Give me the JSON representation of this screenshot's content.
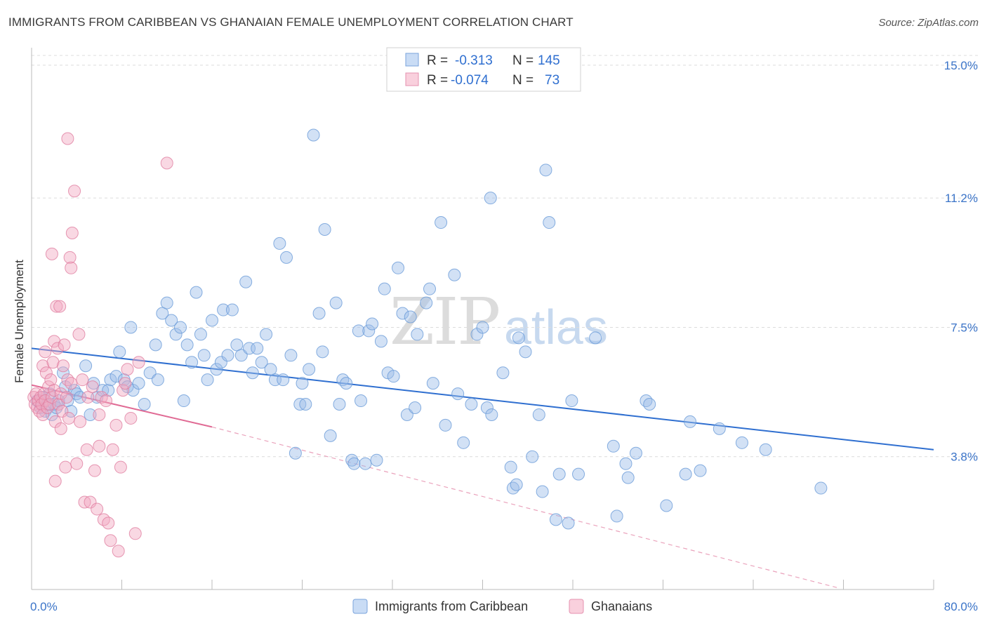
{
  "title": "IMMIGRANTS FROM CARIBBEAN VS GHANAIAN FEMALE UNEMPLOYMENT CORRELATION CHART",
  "source": "Source: ZipAtlas.com",
  "watermark": {
    "zip": "ZIP",
    "atlas": "atlas"
  },
  "legend_box": {
    "rows": [
      {
        "r_label": "R =",
        "r_value": "-0.313",
        "n_label": "N =",
        "n_value": "145",
        "color": "#9bbde8"
      },
      {
        "r_label": "R =",
        "r_value": "-0.074",
        "n_label": "N =",
        "n_value": "73",
        "color": "#f2a9c0"
      }
    ]
  },
  "chart_data": {
    "type": "scatter",
    "ylabel": "Female Unemployment",
    "xlabel": "",
    "xlim": [
      0,
      80
    ],
    "ylim": [
      0,
      15.5
    ],
    "x_tick_labels": [
      {
        "value": 0,
        "label": "0.0%"
      },
      {
        "value": 80,
        "label": "80.0%"
      }
    ],
    "y_tick_labels": [
      {
        "value": 3.8,
        "label": "3.8%"
      },
      {
        "value": 7.5,
        "label": "7.5%"
      },
      {
        "value": 11.2,
        "label": "11.2%"
      },
      {
        "value": 15.0,
        "label": "15.0%"
      }
    ],
    "grid": "horizontal dashed",
    "legend_position": "bottom",
    "series": [
      {
        "name": "Immigrants from Caribbean",
        "color": "#9bbde8",
        "stroke": "#6a9bd8",
        "trend": {
          "x0": 0,
          "y0": 6.9,
          "x1": 80,
          "y1": 4.0,
          "color": "#2f6fd0"
        },
        "points": [
          [
            0.5,
            5.4
          ],
          [
            0.8,
            5.2
          ],
          [
            1.0,
            5.5
          ],
          [
            1.2,
            5.1
          ],
          [
            1.4,
            5.3
          ],
          [
            1.6,
            5.6
          ],
          [
            1.8,
            5.0
          ],
          [
            2.0,
            5.3
          ],
          [
            2.2,
            5.2
          ],
          [
            2.4,
            5.4
          ],
          [
            2.8,
            6.2
          ],
          [
            3.0,
            5.8
          ],
          [
            3.2,
            5.4
          ],
          [
            3.5,
            5.1
          ],
          [
            3.8,
            5.7
          ],
          [
            4.0,
            5.6
          ],
          [
            4.3,
            5.5
          ],
          [
            4.8,
            6.4
          ],
          [
            5.2,
            5.0
          ],
          [
            5.5,
            5.9
          ],
          [
            5.8,
            5.5
          ],
          [
            6.3,
            5.7
          ],
          [
            6.8,
            5.7
          ],
          [
            7.0,
            6.0
          ],
          [
            7.5,
            6.1
          ],
          [
            7.8,
            6.8
          ],
          [
            8.2,
            6.0
          ],
          [
            8.5,
            5.8
          ],
          [
            8.8,
            7.5
          ],
          [
            9.0,
            5.7
          ],
          [
            9.5,
            5.9
          ],
          [
            10.0,
            5.3
          ],
          [
            10.5,
            6.2
          ],
          [
            11.0,
            7.0
          ],
          [
            11.2,
            6.0
          ],
          [
            11.6,
            7.9
          ],
          [
            12.0,
            8.2
          ],
          [
            12.4,
            7.7
          ],
          [
            12.8,
            7.3
          ],
          [
            13.2,
            7.5
          ],
          [
            13.5,
            5.4
          ],
          [
            13.8,
            7.0
          ],
          [
            14.2,
            6.5
          ],
          [
            14.6,
            8.5
          ],
          [
            15.0,
            7.3
          ],
          [
            15.3,
            6.7
          ],
          [
            15.6,
            6.0
          ],
          [
            16.0,
            7.7
          ],
          [
            16.4,
            6.3
          ],
          [
            16.8,
            6.5
          ],
          [
            17.0,
            8.0
          ],
          [
            17.4,
            6.7
          ],
          [
            17.8,
            8.0
          ],
          [
            18.2,
            7.0
          ],
          [
            18.6,
            6.7
          ],
          [
            19.0,
            8.8
          ],
          [
            19.3,
            6.9
          ],
          [
            19.6,
            6.2
          ],
          [
            20.0,
            6.9
          ],
          [
            20.4,
            6.5
          ],
          [
            20.8,
            7.3
          ],
          [
            21.2,
            6.3
          ],
          [
            21.6,
            6.0
          ],
          [
            22.0,
            9.9
          ],
          [
            22.3,
            6.0
          ],
          [
            22.6,
            9.5
          ],
          [
            23.0,
            6.7
          ],
          [
            23.4,
            3.9
          ],
          [
            23.8,
            5.3
          ],
          [
            24.0,
            5.9
          ],
          [
            24.3,
            5.3
          ],
          [
            24.6,
            6.3
          ],
          [
            25.0,
            13.0
          ],
          [
            25.5,
            7.9
          ],
          [
            25.8,
            6.8
          ],
          [
            26.0,
            10.3
          ],
          [
            26.5,
            4.4
          ],
          [
            27.0,
            8.2
          ],
          [
            27.3,
            5.3
          ],
          [
            27.6,
            6.0
          ],
          [
            27.9,
            5.9
          ],
          [
            28.4,
            3.7
          ],
          [
            28.6,
            3.6
          ],
          [
            29.0,
            7.4
          ],
          [
            29.2,
            5.4
          ],
          [
            29.6,
            3.6
          ],
          [
            29.9,
            7.4
          ],
          [
            30.2,
            7.6
          ],
          [
            30.6,
            3.7
          ],
          [
            31.0,
            7.1
          ],
          [
            31.3,
            8.6
          ],
          [
            31.6,
            6.2
          ],
          [
            32.1,
            6.1
          ],
          [
            32.5,
            9.2
          ],
          [
            32.9,
            7.9
          ],
          [
            33.3,
            5.0
          ],
          [
            33.6,
            7.8
          ],
          [
            34.0,
            5.2
          ],
          [
            34.2,
            7.3
          ],
          [
            35.0,
            8.2
          ],
          [
            35.3,
            8.6
          ],
          [
            35.6,
            5.9
          ],
          [
            36.3,
            10.5
          ],
          [
            36.7,
            4.7
          ],
          [
            37.5,
            9.0
          ],
          [
            37.8,
            5.6
          ],
          [
            38.3,
            4.2
          ],
          [
            39.0,
            5.3
          ],
          [
            39.5,
            7.3
          ],
          [
            40.0,
            7.5
          ],
          [
            40.4,
            5.2
          ],
          [
            40.7,
            11.2
          ],
          [
            40.8,
            5.0
          ],
          [
            41.8,
            6.2
          ],
          [
            42.5,
            3.5
          ],
          [
            42.7,
            2.9
          ],
          [
            43.0,
            3.0
          ],
          [
            43.2,
            7.2
          ],
          [
            43.8,
            6.8
          ],
          [
            44.4,
            3.8
          ],
          [
            45.0,
            5.0
          ],
          [
            45.3,
            2.8
          ],
          [
            45.6,
            12.0
          ],
          [
            45.9,
            10.5
          ],
          [
            46.5,
            2.0
          ],
          [
            46.8,
            3.3
          ],
          [
            47.6,
            1.9
          ],
          [
            47.9,
            5.4
          ],
          [
            48.5,
            3.3
          ],
          [
            50.0,
            7.2
          ],
          [
            51.6,
            4.1
          ],
          [
            51.9,
            2.1
          ],
          [
            52.7,
            3.6
          ],
          [
            52.9,
            3.2
          ],
          [
            53.6,
            3.9
          ],
          [
            54.5,
            5.4
          ],
          [
            54.8,
            5.3
          ],
          [
            56.3,
            2.4
          ],
          [
            58.0,
            3.3
          ],
          [
            58.4,
            4.8
          ],
          [
            59.3,
            3.4
          ],
          [
            61.0,
            4.6
          ],
          [
            63.0,
            4.2
          ],
          [
            65.1,
            4.0
          ],
          [
            70.0,
            2.9
          ]
        ]
      },
      {
        "name": "Ghanaians",
        "color": "#f2a9c0",
        "stroke": "#e07ea0",
        "trend": {
          "x0": 0,
          "y0": 5.85,
          "x1": 16,
          "y1": 4.65,
          "color": "#e06a94"
        },
        "trend_ext": {
          "x0": 16,
          "y0": 4.65,
          "x1": 71.5,
          "y1": 0.05,
          "color": "#eaa3bc"
        },
        "points": [
          [
            0.2,
            5.5
          ],
          [
            0.3,
            5.3
          ],
          [
            0.4,
            5.6
          ],
          [
            0.5,
            5.2
          ],
          [
            0.6,
            5.4
          ],
          [
            0.7,
            5.1
          ],
          [
            0.8,
            5.5
          ],
          [
            0.9,
            5.3
          ],
          [
            1.0,
            6.4
          ],
          [
            1.0,
            5.0
          ],
          [
            1.1,
            5.6
          ],
          [
            1.2,
            5.4
          ],
          [
            1.3,
            6.2
          ],
          [
            1.4,
            5.2
          ],
          [
            1.5,
            5.8
          ],
          [
            1.6,
            5.3
          ],
          [
            1.7,
            6.0
          ],
          [
            1.8,
            5.5
          ],
          [
            1.9,
            6.5
          ],
          [
            2.0,
            5.7
          ],
          [
            2.0,
            7.1
          ],
          [
            2.1,
            4.8
          ],
          [
            2.2,
            8.1
          ],
          [
            2.3,
            6.9
          ],
          [
            2.4,
            5.3
          ],
          [
            2.5,
            8.1
          ],
          [
            2.6,
            5.6
          ],
          [
            2.7,
            5.1
          ],
          [
            2.8,
            6.4
          ],
          [
            2.9,
            7.0
          ],
          [
            3.0,
            3.5
          ],
          [
            3.1,
            5.5
          ],
          [
            3.2,
            6.0
          ],
          [
            3.3,
            4.9
          ],
          [
            3.5,
            5.9
          ],
          [
            3.6,
            10.2
          ],
          [
            3.8,
            11.4
          ],
          [
            4.0,
            3.6
          ],
          [
            4.2,
            7.3
          ],
          [
            4.3,
            4.8
          ],
          [
            4.5,
            6.0
          ],
          [
            4.7,
            2.5
          ],
          [
            4.9,
            4.0
          ],
          [
            5.0,
            5.5
          ],
          [
            5.2,
            2.5
          ],
          [
            5.4,
            5.8
          ],
          [
            5.6,
            3.4
          ],
          [
            5.8,
            2.3
          ],
          [
            6.0,
            5.0
          ],
          [
            6.2,
            5.5
          ],
          [
            6.4,
            2.0
          ],
          [
            6.6,
            5.4
          ],
          [
            6.8,
            1.9
          ],
          [
            7.0,
            1.4
          ],
          [
            7.2,
            4.0
          ],
          [
            7.5,
            4.7
          ],
          [
            7.7,
            1.1
          ],
          [
            7.9,
            3.5
          ],
          [
            8.1,
            5.7
          ],
          [
            8.3,
            5.9
          ],
          [
            8.5,
            6.3
          ],
          [
            8.8,
            4.9
          ],
          [
            9.2,
            1.6
          ],
          [
            9.5,
            6.5
          ],
          [
            12.0,
            12.2
          ],
          [
            2.1,
            3.1
          ],
          [
            3.4,
            9.5
          ],
          [
            3.5,
            9.2
          ],
          [
            1.8,
            9.6
          ],
          [
            3.2,
            12.9
          ],
          [
            1.2,
            6.8
          ],
          [
            2.6,
            4.6
          ],
          [
            6.0,
            4.1
          ]
        ]
      }
    ]
  },
  "bottom_legend": [
    {
      "label": "Immigrants from Caribbean",
      "color": "#9bbde8"
    },
    {
      "label": "Ghanaians",
      "color": "#f2a9c0"
    }
  ]
}
